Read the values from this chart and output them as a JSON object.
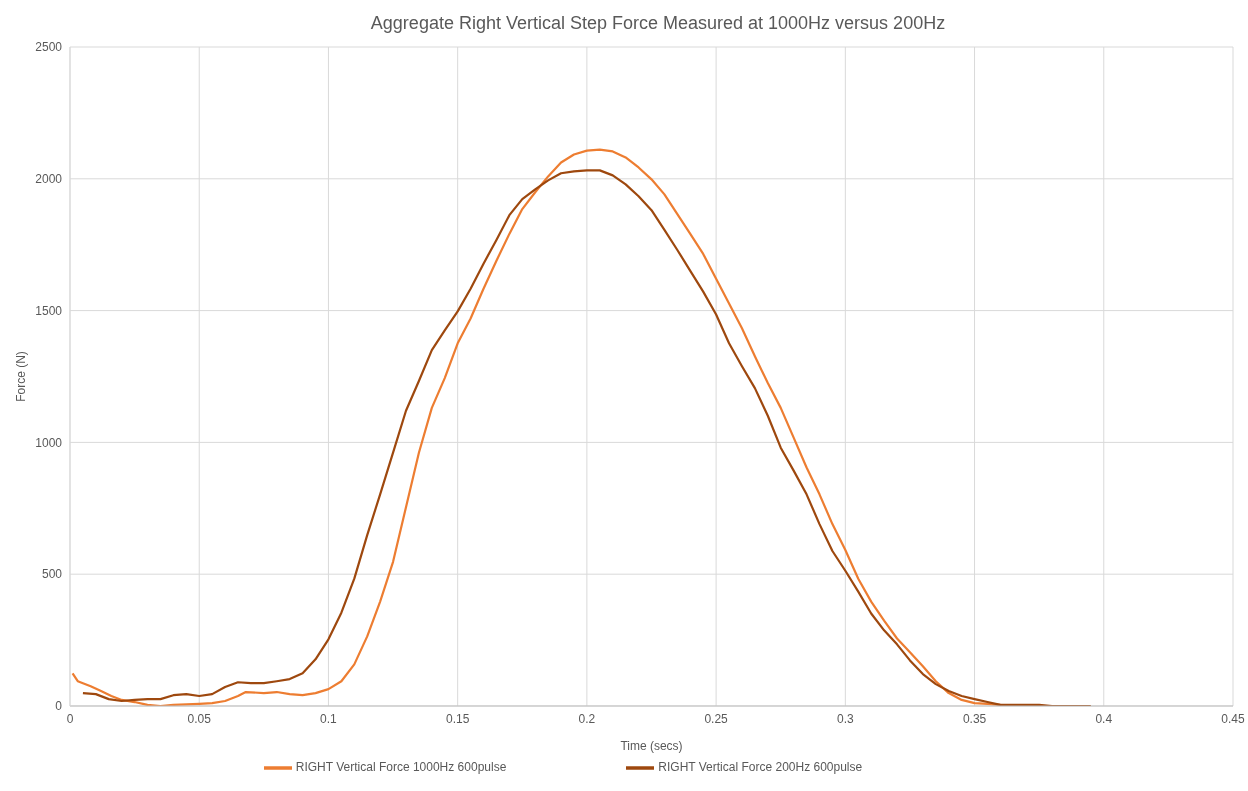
{
  "chart_data": {
    "type": "line",
    "title": "Aggregate Right Vertical Step Force Measured at 1000Hz versus 200Hz",
    "xlabel": "Time (secs)",
    "ylabel": "Force (N)",
    "xlim": [
      0,
      0.45
    ],
    "xticks": [
      0,
      0.05,
      0.1,
      0.15,
      0.2,
      0.25,
      0.3,
      0.35,
      0.4,
      0.45
    ],
    "ylim": [
      0,
      2500
    ],
    "yticks": [
      0,
      500,
      1000,
      1500,
      2000,
      2500
    ],
    "grid": true,
    "legend": "bottom",
    "marker": "none",
    "line_style": "solid",
    "series": [
      {
        "name": "RIGHT Vertical Force 1000Hz 600pulse",
        "color": "#ed7d31",
        "x": [
          0.001,
          0.003,
          0.008,
          0.012,
          0.016,
          0.02,
          0.025,
          0.03,
          0.035,
          0.04,
          0.05,
          0.055,
          0.06,
          0.065,
          0.068,
          0.075,
          0.08,
          0.085,
          0.09,
          0.095,
          0.1,
          0.105,
          0.11,
          0.115,
          0.12,
          0.125,
          0.13,
          0.135,
          0.14,
          0.145,
          0.15,
          0.155,
          0.16,
          0.165,
          0.17,
          0.175,
          0.18,
          0.185,
          0.19,
          0.195,
          0.2,
          0.205,
          0.21,
          0.215,
          0.22,
          0.225,
          0.23,
          0.235,
          0.24,
          0.245,
          0.25,
          0.255,
          0.26,
          0.265,
          0.27,
          0.275,
          0.28,
          0.285,
          0.29,
          0.295,
          0.3,
          0.305,
          0.31,
          0.315,
          0.32,
          0.325,
          0.33,
          0.335,
          0.34,
          0.345,
          0.35,
          0.355,
          0.36
        ],
        "values": [
          124,
          94,
          75,
          57,
          38,
          23,
          15,
          4,
          0,
          4,
          8,
          11,
          19,
          38,
          53,
          49,
          53,
          45,
          41,
          49,
          64,
          94,
          158,
          264,
          396,
          547,
          754,
          961,
          1131,
          1244,
          1376,
          1470,
          1583,
          1689,
          1791,
          1885,
          1949,
          2009,
          2062,
          2092,
          2107,
          2111,
          2104,
          2081,
          2043,
          1998,
          1941,
          1866,
          1791,
          1715,
          1621,
          1527,
          1433,
          1327,
          1225,
          1131,
          1018,
          905,
          803,
          690,
          592,
          483,
          396,
          324,
          256,
          204,
          151,
          94,
          49,
          23,
          11,
          8,
          4
        ]
      },
      {
        "name": "RIGHT Vertical Force 200Hz 600pulse",
        "color": "#9e480e",
        "x": [
          0.005,
          0.01,
          0.015,
          0.02,
          0.025,
          0.03,
          0.035,
          0.04,
          0.045,
          0.05,
          0.055,
          0.06,
          0.065,
          0.07,
          0.075,
          0.08,
          0.085,
          0.09,
          0.095,
          0.1,
          0.105,
          0.11,
          0.115,
          0.12,
          0.125,
          0.13,
          0.135,
          0.14,
          0.145,
          0.15,
          0.155,
          0.16,
          0.165,
          0.17,
          0.175,
          0.18,
          0.185,
          0.19,
          0.195,
          0.2,
          0.205,
          0.21,
          0.215,
          0.22,
          0.225,
          0.23,
          0.235,
          0.24,
          0.245,
          0.25,
          0.255,
          0.26,
          0.265,
          0.27,
          0.275,
          0.28,
          0.285,
          0.29,
          0.295,
          0.3,
          0.305,
          0.31,
          0.315,
          0.32,
          0.325,
          0.33,
          0.335,
          0.34,
          0.345,
          0.35,
          0.355,
          0.36,
          0.37,
          0.375,
          0.38,
          0.395
        ],
        "values": [
          49,
          45,
          26,
          19,
          23,
          26,
          26,
          41,
          45,
          38,
          45,
          72,
          90,
          87,
          87,
          94,
          102,
          124,
          177,
          253,
          354,
          483,
          648,
          803,
          961,
          1120,
          1233,
          1350,
          1425,
          1497,
          1583,
          1678,
          1768,
          1862,
          1923,
          1960,
          1994,
          2021,
          2028,
          2032,
          2032,
          2013,
          1979,
          1934,
          1881,
          1806,
          1730,
          1651,
          1572,
          1485,
          1376,
          1289,
          1206,
          1101,
          980,
          893,
          803,
          690,
          588,
          513,
          434,
          351,
          287,
          234,
          173,
          121,
          83,
          57,
          38,
          26,
          15,
          4,
          4,
          4,
          0,
          0
        ]
      }
    ]
  }
}
